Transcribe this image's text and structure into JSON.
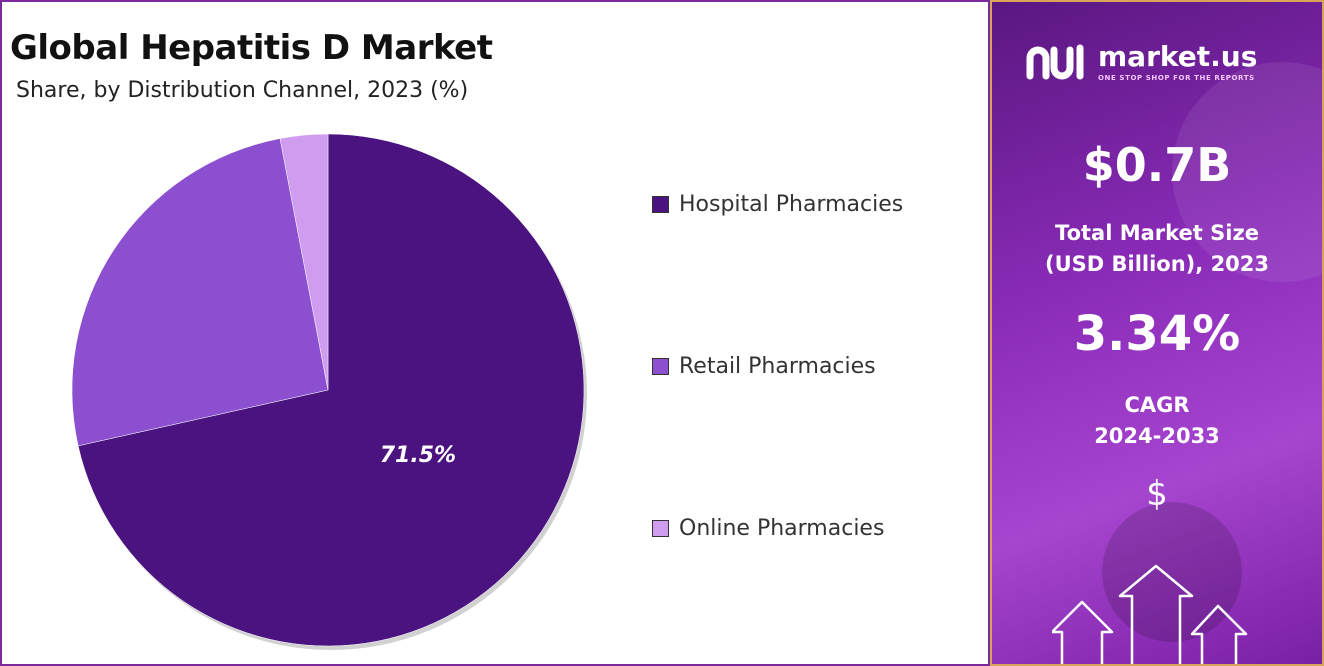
{
  "header": {
    "title": "Global Hepatitis D Market",
    "subtitle": "Share, by Distribution Channel, 2023 (%)"
  },
  "chart_data": {
    "type": "pie",
    "categories": [
      "Hospital Pharmacies",
      "Retail Pharmacies",
      "Online Pharmacies"
    ],
    "values": [
      71.5,
      25.5,
      3.0
    ],
    "colors": [
      "#4b137f",
      "#8b4fd0",
      "#cf9cf0"
    ],
    "data_labels": [
      "71.5%",
      "",
      ""
    ],
    "legend_position": "right"
  },
  "sidebar": {
    "brand_name": "market.us",
    "brand_tagline": "ONE STOP SHOP FOR THE REPORTS",
    "market_size_value": "$0.7B",
    "market_size_label_line1": "Total Market Size",
    "market_size_label_line2": "(USD Billion), 2023",
    "cagr_value": "3.34%",
    "cagr_label_line1": "CAGR",
    "cagr_label_line2": "2024-2033",
    "currency_symbol": "$"
  }
}
